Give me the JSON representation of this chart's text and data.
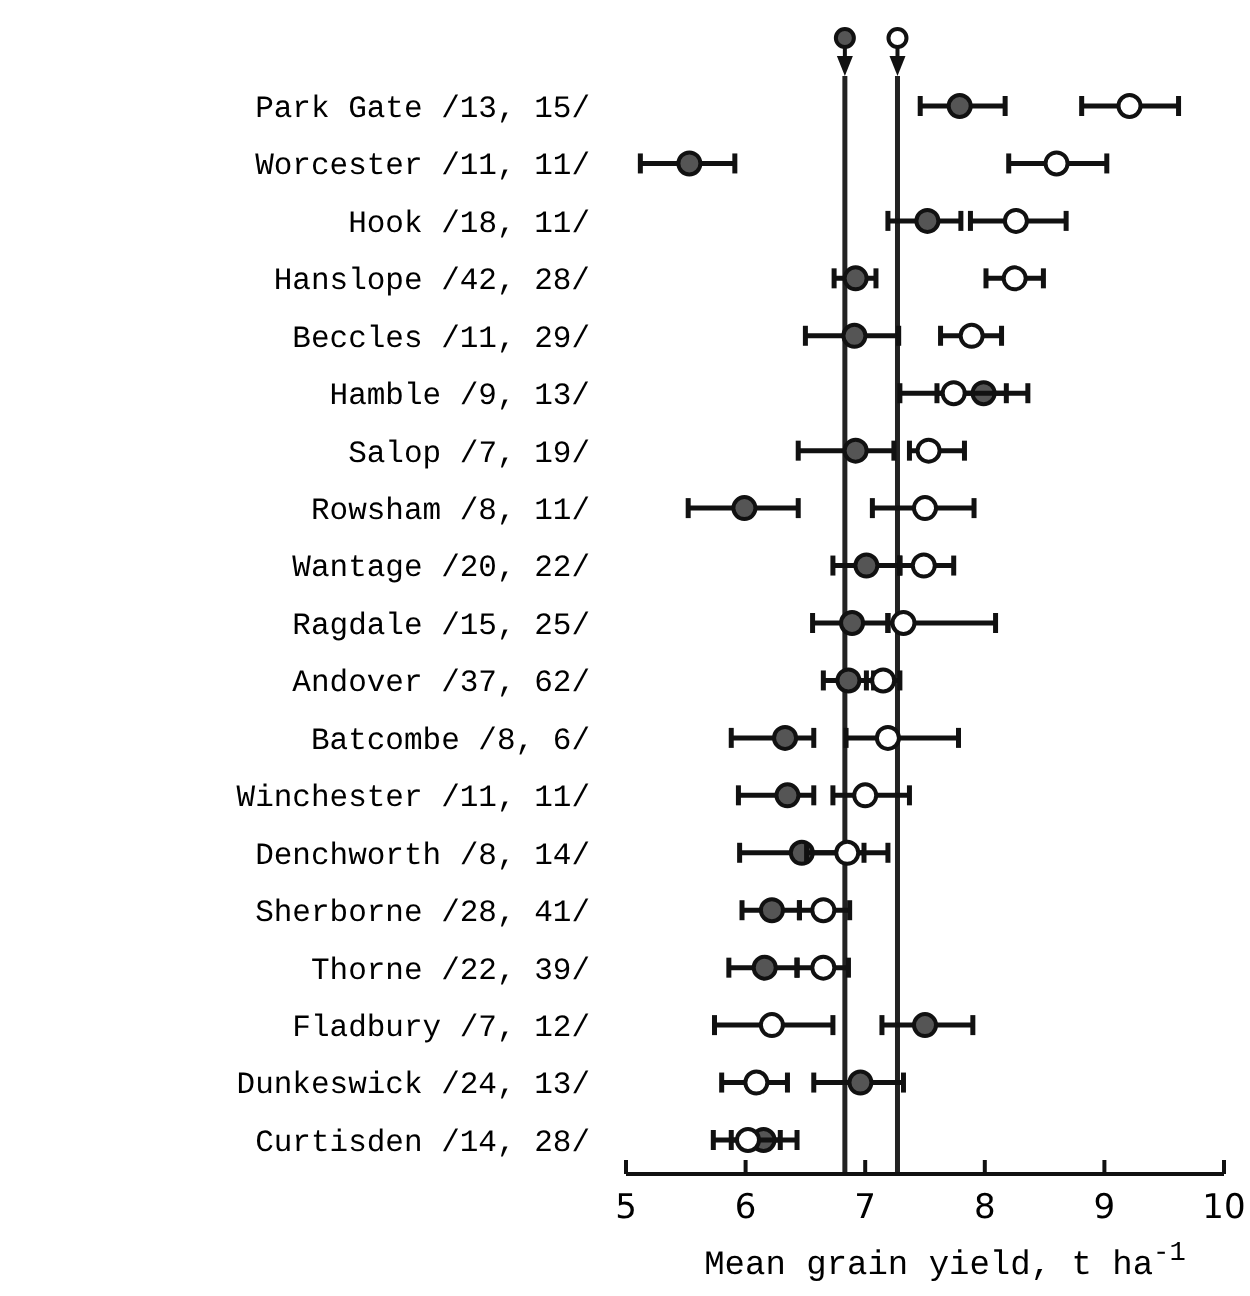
{
  "chart_data": {
    "type": "scatter",
    "orientation": "horizontal",
    "xlabel": "Mean grain yield, t ha$^{-1}$",
    "categories": [
      "Park Gate /13, 15/",
      "Worcester /11, 11/",
      "Hook /18, 11/",
      "Hanslope /42, 28/",
      "Beccles /11, 29/",
      "Hamble /9, 13/",
      "Salop /7, 19/",
      "Rowsham /8, 11/",
      "Wantage /20, 22/",
      "Ragdale /15, 25/",
      "Andover /37, 62/",
      "Batcombe /8, 6/",
      "Winchester /11, 11/",
      "Denchworth /8, 14/",
      "Sherborne /28, 41/",
      "Thorne /22, 39/",
      "Fladbury /7, 12/",
      "Dunkeswick /24, 13/",
      "Curtisden /14, 28/"
    ],
    "series": [
      {
        "color": "#555555",
        "values": [
          7.79,
          5.53,
          7.52,
          6.92,
          6.91,
          7.99,
          6.92,
          5.99,
          7.01,
          6.89,
          6.86,
          6.33,
          6.35,
          6.47,
          6.22,
          6.16,
          7.5,
          6.96,
          6.15
        ],
        "errors": [
          [
            7.46,
            8.17
          ],
          [
            5.12,
            5.91
          ],
          [
            7.19,
            7.8
          ],
          [
            6.74,
            7.09
          ],
          [
            6.5,
            7.28
          ],
          [
            7.6,
            8.36
          ],
          [
            6.44,
            7.24
          ],
          [
            5.52,
            6.44
          ],
          [
            6.73,
            7.29
          ],
          [
            6.56,
            7.19
          ],
          [
            6.65,
            7.07
          ],
          [
            5.88,
            6.57
          ],
          [
            5.94,
            6.57
          ],
          [
            5.95,
            6.99
          ],
          [
            5.97,
            6.45
          ],
          [
            5.86,
            6.43
          ],
          [
            7.14,
            7.9
          ],
          [
            6.57,
            7.32
          ],
          [
            5.88,
            6.43
          ]
        ]
      },
      {
        "color": "#ffffff",
        "values": [
          9.21,
          8.6,
          8.26,
          8.25,
          7.89,
          7.74,
          7.53,
          7.5,
          7.49,
          7.32,
          7.15,
          7.19,
          7.0,
          6.85,
          6.65,
          6.65,
          6.22,
          6.09,
          6.02
        ],
        "errors": [
          [
            8.81,
            9.62
          ],
          [
            8.2,
            9.02
          ],
          [
            7.88,
            8.68
          ],
          [
            8.01,
            8.49
          ],
          [
            7.63,
            8.14
          ],
          [
            7.29,
            8.18
          ],
          [
            7.37,
            7.83
          ],
          [
            7.06,
            7.91
          ],
          [
            7.29,
            7.74
          ],
          [
            7.19,
            8.09
          ],
          [
            7.01,
            7.29
          ],
          [
            6.84,
            7.78
          ],
          [
            6.73,
            7.37
          ],
          [
            6.51,
            7.19
          ],
          [
            6.45,
            6.87
          ],
          [
            6.43,
            6.86
          ],
          [
            5.74,
            6.73
          ],
          [
            5.8,
            6.35
          ],
          [
            5.73,
            6.29
          ]
        ]
      }
    ],
    "ref_lines": [
      {
        "axis": "x",
        "value": 6.83,
        "color": "#222222"
      },
      {
        "axis": "x",
        "value": 7.27,
        "color": "#222222"
      }
    ],
    "xlim": [
      5,
      10
    ],
    "xticks": [
      5,
      6,
      7,
      8,
      9,
      10
    ],
    "marker": "circle",
    "grid": false
  }
}
